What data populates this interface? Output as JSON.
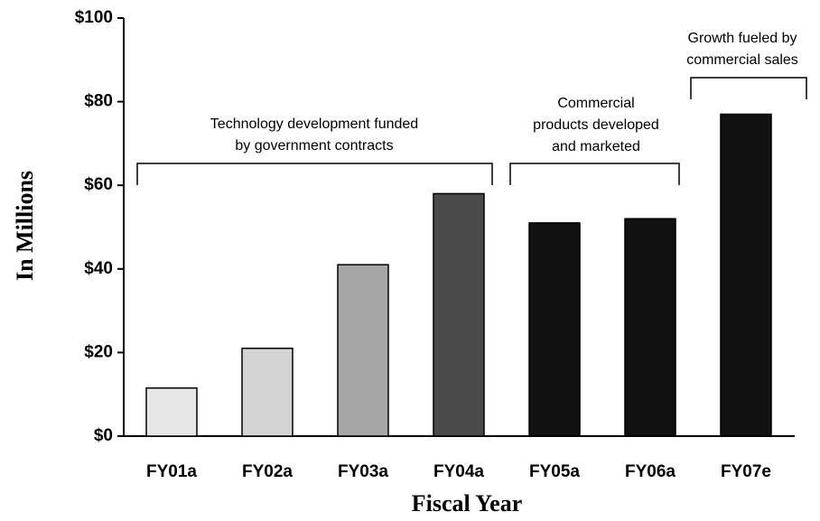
{
  "chart_data": {
    "type": "bar",
    "x_label": "Fiscal Year",
    "y_label": "In Millions",
    "categories": [
      "FY01a",
      "FY02a",
      "FY03a",
      "FY04a",
      "FY05a",
      "FY06a",
      "FY07e"
    ],
    "values": [
      11.5,
      21,
      41,
      58,
      51,
      52,
      77
    ],
    "colors": [
      "#e6e6e6",
      "#d4d4d4",
      "#a6a6a6",
      "#4a4a4a",
      "#111111",
      "#111111",
      "#111111"
    ],
    "ylim": [
      0,
      100
    ],
    "yticks": [
      {
        "value": 0,
        "label": "$0"
      },
      {
        "value": 20,
        "label": "$20"
      },
      {
        "value": 40,
        "label": "$40"
      },
      {
        "value": 60,
        "label": "$60"
      },
      {
        "value": 80,
        "label": "$80"
      },
      {
        "value": 100,
        "label": "$100"
      }
    ],
    "annotations": [
      {
        "text": [
          "Technology development funded",
          "by government contracts"
        ]
      },
      {
        "text": [
          "Commercial",
          "products developed",
          "and marketed"
        ]
      },
      {
        "text": [
          "Growth fueled by",
          "commercial sales"
        ]
      }
    ]
  }
}
